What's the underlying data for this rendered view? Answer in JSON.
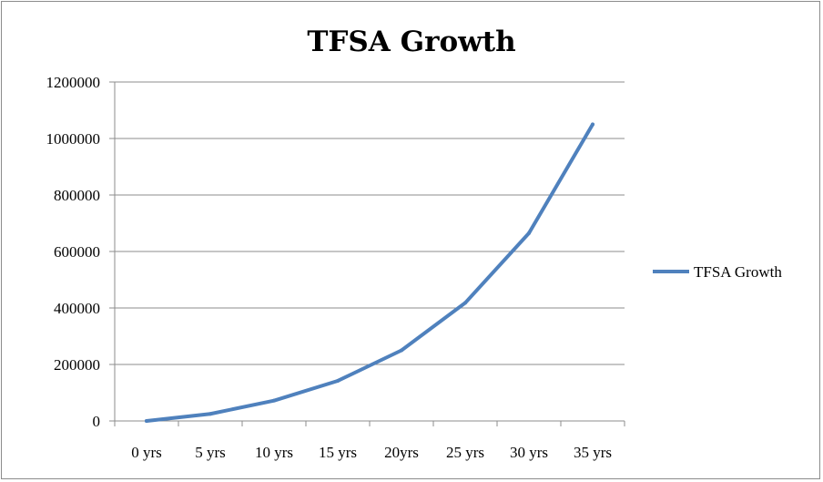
{
  "chart_data": {
    "type": "line",
    "title": "TFSA Growth",
    "xlabel": "",
    "ylabel": "",
    "categories": [
      "0 yrs",
      "5 yrs",
      "10 yrs",
      "15 yrs",
      "20yrs",
      "25 yrs",
      "30 yrs",
      "35 yrs"
    ],
    "series": [
      {
        "name": "TFSA Growth",
        "color": "#4f81bd",
        "values": [
          0,
          25000,
          72000,
          142000,
          250000,
          418000,
          665000,
          1050000
        ]
      }
    ],
    "ylim": [
      0,
      1200000
    ],
    "yticks": [
      0,
      200000,
      400000,
      600000,
      800000,
      1000000,
      1200000
    ],
    "grid": true,
    "legend_position": "right",
    "gridline_color": "#8c8c8c"
  }
}
